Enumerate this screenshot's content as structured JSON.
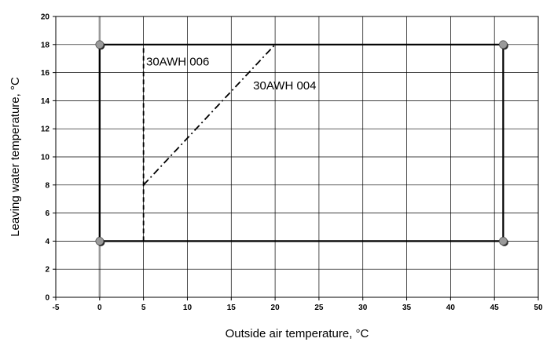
{
  "chart_data": {
    "type": "line",
    "title": "",
    "xlabel": "Outside air temperature, °C",
    "ylabel": "Leaving water temperature, °C",
    "xlim": [
      -5,
      50
    ],
    "ylim": [
      0,
      20
    ],
    "xticks": [
      -5,
      0,
      5,
      10,
      15,
      20,
      25,
      30,
      35,
      40,
      45,
      50
    ],
    "yticks": [
      0,
      2,
      4,
      6,
      8,
      10,
      12,
      14,
      16,
      18,
      20
    ],
    "grid": true,
    "zero_line_color": "#999999",
    "series": [
      {
        "style": "solid",
        "points": [
          [
            0,
            4
          ],
          [
            0,
            18
          ],
          [
            46,
            18
          ],
          [
            46,
            4
          ],
          [
            0,
            4
          ]
        ],
        "markers": [
          [
            0,
            18
          ],
          [
            46,
            18
          ],
          [
            0,
            4
          ],
          [
            46,
            4
          ]
        ]
      },
      {
        "style": "dashed",
        "points": [
          [
            5,
            4
          ],
          [
            5,
            18
          ]
        ]
      },
      {
        "style": "dashdot",
        "points": [
          [
            5,
            8
          ],
          [
            20,
            18
          ]
        ]
      }
    ],
    "annotations": [
      {
        "text": "30AWH 006",
        "x": 5.3,
        "y": 16.5
      },
      {
        "text": "30AWH 004",
        "x": 17.5,
        "y": 14.8
      }
    ]
  }
}
